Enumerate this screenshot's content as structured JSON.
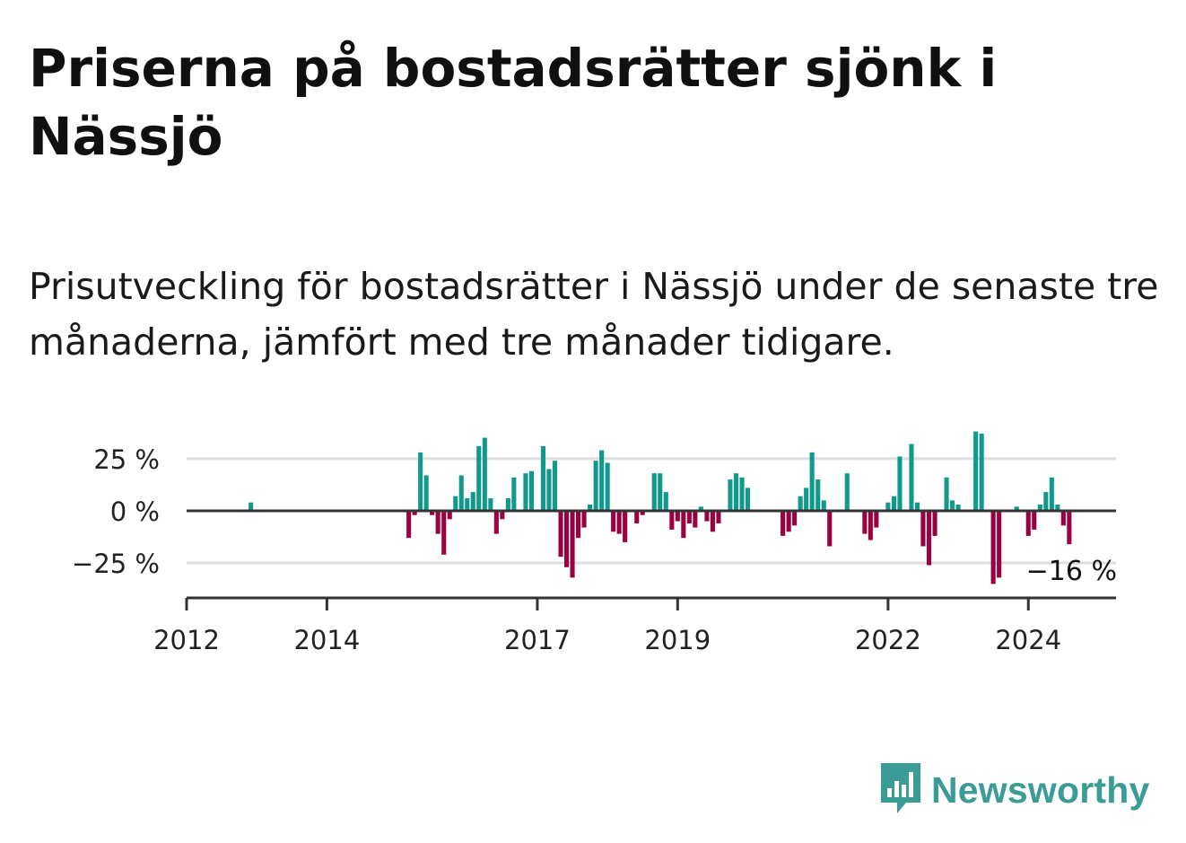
{
  "title": "Priserna på bostadsrätter sjönk i Nässjö",
  "subtitle": "Prisutveckling för bostadsrätter i Nässjö under de senaste tre månaderna, jämfört med tre månader tidigare.",
  "logo": {
    "text": "Newsworthy",
    "icon": "bar-chart-speech-bubble-icon"
  },
  "colors": {
    "positive": "#11998e",
    "negative": "#9b0040",
    "grid": "#dddddd",
    "axis": "#333333",
    "brand": "#3b9b95"
  },
  "chart_data": {
    "type": "bar",
    "y_unit": "%",
    "ylim": [
      -42,
      42
    ],
    "yticks": [
      25,
      0,
      -25
    ],
    "ytick_labels": [
      "25 %",
      "0 %",
      "−25 %"
    ],
    "xlim": [
      2012.0,
      2025.25
    ],
    "xticks": [
      2012,
      2014,
      2017,
      2019,
      2022,
      2024
    ],
    "xtick_labels": [
      "2012",
      "2014",
      "2017",
      "2019",
      "2022",
      "2024"
    ],
    "grid": true,
    "last_value_label": "−16 %",
    "points": [
      {
        "x": "2012-12",
        "y": 4
      },
      {
        "x": "2015-03",
        "y": -13
      },
      {
        "x": "2015-04",
        "y": -2
      },
      {
        "x": "2015-05",
        "y": 28
      },
      {
        "x": "2015-06",
        "y": 17
      },
      {
        "x": "2015-07",
        "y": -2
      },
      {
        "x": "2015-08",
        "y": -11
      },
      {
        "x": "2015-09",
        "y": -21
      },
      {
        "x": "2015-10",
        "y": -4
      },
      {
        "x": "2015-11",
        "y": 7
      },
      {
        "x": "2015-12",
        "y": 17
      },
      {
        "x": "2016-01",
        "y": 6
      },
      {
        "x": "2016-02",
        "y": 9
      },
      {
        "x": "2016-03",
        "y": 31
      },
      {
        "x": "2016-04",
        "y": 35
      },
      {
        "x": "2016-05",
        "y": 6
      },
      {
        "x": "2016-06",
        "y": -11
      },
      {
        "x": "2016-07",
        "y": -4
      },
      {
        "x": "2016-08",
        "y": 6
      },
      {
        "x": "2016-09",
        "y": 16
      },
      {
        "x": "2016-11",
        "y": 18
      },
      {
        "x": "2016-12",
        "y": 19
      },
      {
        "x": "2017-02",
        "y": 31
      },
      {
        "x": "2017-03",
        "y": 20
      },
      {
        "x": "2017-04",
        "y": 24
      },
      {
        "x": "2017-05",
        "y": -22
      },
      {
        "x": "2017-06",
        "y": -27
      },
      {
        "x": "2017-07",
        "y": -32
      },
      {
        "x": "2017-08",
        "y": -13
      },
      {
        "x": "2017-09",
        "y": -8
      },
      {
        "x": "2017-10",
        "y": 3
      },
      {
        "x": "2017-11",
        "y": 24
      },
      {
        "x": "2017-12",
        "y": 29
      },
      {
        "x": "2018-01",
        "y": 23
      },
      {
        "x": "2018-02",
        "y": -10
      },
      {
        "x": "2018-03",
        "y": -11
      },
      {
        "x": "2018-04",
        "y": -15
      },
      {
        "x": "2018-06",
        "y": -6
      },
      {
        "x": "2018-07",
        "y": -2
      },
      {
        "x": "2018-09",
        "y": 18
      },
      {
        "x": "2018-10",
        "y": 18
      },
      {
        "x": "2018-11",
        "y": 9
      },
      {
        "x": "2018-12",
        "y": -9
      },
      {
        "x": "2019-01",
        "y": -5
      },
      {
        "x": "2019-02",
        "y": -13
      },
      {
        "x": "2019-03",
        "y": -6
      },
      {
        "x": "2019-04",
        "y": -8
      },
      {
        "x": "2019-05",
        "y": 2
      },
      {
        "x": "2019-06",
        "y": -5
      },
      {
        "x": "2019-07",
        "y": -10
      },
      {
        "x": "2019-08",
        "y": -6
      },
      {
        "x": "2019-10",
        "y": 15
      },
      {
        "x": "2019-11",
        "y": 18
      },
      {
        "x": "2019-12",
        "y": 16
      },
      {
        "x": "2020-01",
        "y": 11
      },
      {
        "x": "2020-07",
        "y": -12
      },
      {
        "x": "2020-08",
        "y": -10
      },
      {
        "x": "2020-09",
        "y": -7
      },
      {
        "x": "2020-10",
        "y": 7
      },
      {
        "x": "2020-11",
        "y": 11
      },
      {
        "x": "2020-12",
        "y": 28
      },
      {
        "x": "2021-01",
        "y": 15
      },
      {
        "x": "2021-02",
        "y": 5
      },
      {
        "x": "2021-03",
        "y": -17
      },
      {
        "x": "2021-06",
        "y": 18
      },
      {
        "x": "2021-09",
        "y": -11
      },
      {
        "x": "2021-10",
        "y": -14
      },
      {
        "x": "2021-11",
        "y": -8
      },
      {
        "x": "2022-01",
        "y": 4
      },
      {
        "x": "2022-02",
        "y": 7
      },
      {
        "x": "2022-03",
        "y": 26
      },
      {
        "x": "2022-05",
        "y": 32
      },
      {
        "x": "2022-06",
        "y": 4
      },
      {
        "x": "2022-07",
        "y": -17
      },
      {
        "x": "2022-08",
        "y": -26
      },
      {
        "x": "2022-09",
        "y": -12
      },
      {
        "x": "2022-11",
        "y": 16
      },
      {
        "x": "2022-12",
        "y": 5
      },
      {
        "x": "2023-01",
        "y": 3
      },
      {
        "x": "2023-04",
        "y": 38
      },
      {
        "x": "2023-05",
        "y": 37
      },
      {
        "x": "2023-07",
        "y": -35
      },
      {
        "x": "2023-08",
        "y": -32
      },
      {
        "x": "2023-11",
        "y": 2
      },
      {
        "x": "2024-01",
        "y": -12
      },
      {
        "x": "2024-02",
        "y": -9
      },
      {
        "x": "2024-03",
        "y": 3
      },
      {
        "x": "2024-04",
        "y": 9
      },
      {
        "x": "2024-05",
        "y": 16
      },
      {
        "x": "2024-06",
        "y": 3
      },
      {
        "x": "2024-07",
        "y": -7
      },
      {
        "x": "2024-08",
        "y": -16
      }
    ]
  }
}
